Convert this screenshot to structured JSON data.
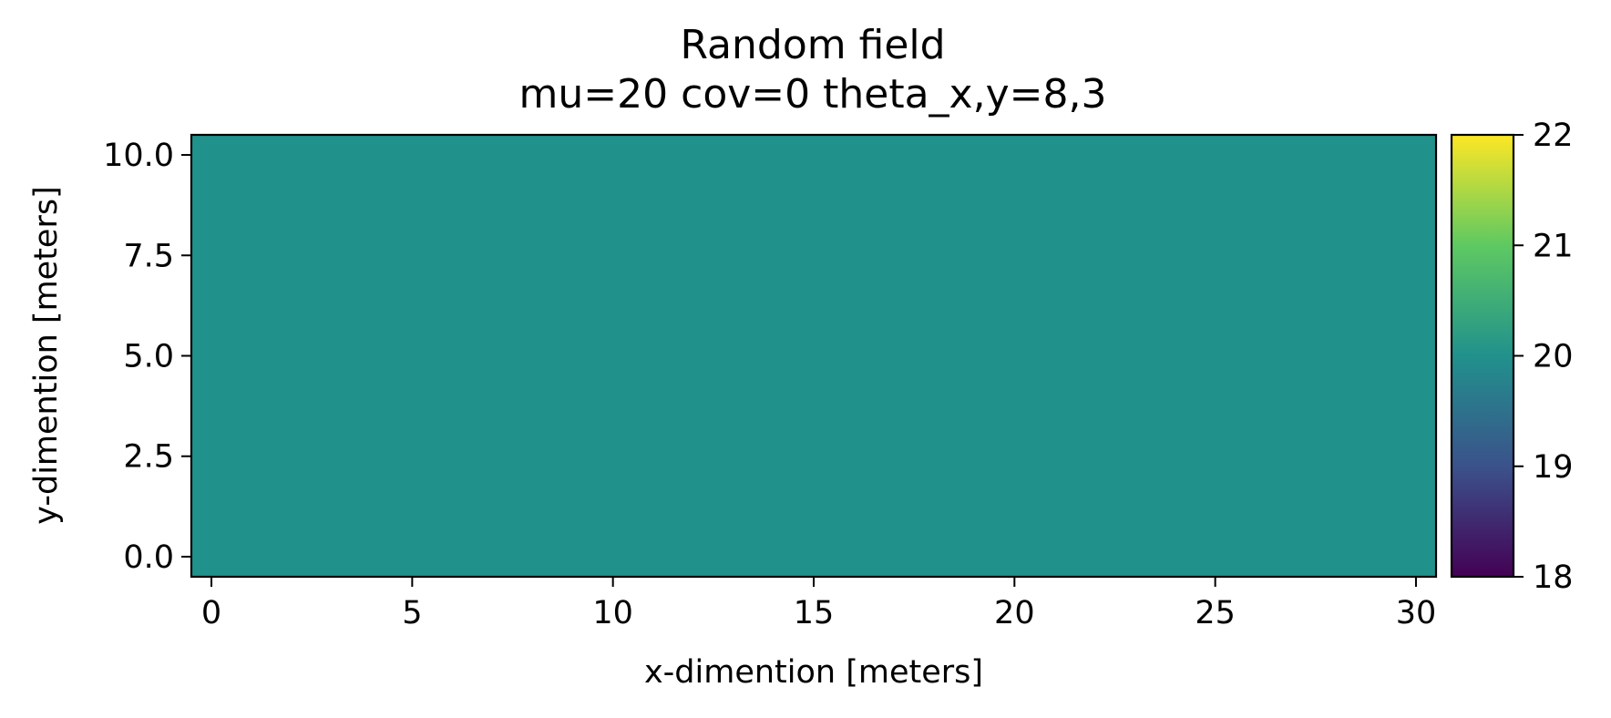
{
  "chart_data": {
    "type": "heatmap",
    "title": "Random field",
    "subtitle": "mu=20 cov=0 theta_x,y=8,3",
    "xlabel": "x-dimention [meters]",
    "ylabel": "y-dimention [meters]",
    "xlim": [
      -0.5,
      30.5
    ],
    "ylim": [
      -0.5,
      10.5
    ],
    "xticks": [
      0,
      5,
      10,
      15,
      20,
      25,
      30
    ],
    "xtick_labels": [
      "0",
      "5",
      "10",
      "15",
      "20",
      "25",
      "30"
    ],
    "yticks": [
      0,
      2.5,
      5,
      7.5,
      10
    ],
    "ytick_labels": [
      "0.0",
      "2.5",
      "5.0",
      "7.5",
      "10.0"
    ],
    "field_value": 20,
    "grid": false,
    "colorbar": {
      "colormap": "viridis",
      "range": [
        18,
        22
      ],
      "ticks": [
        18,
        19,
        20,
        21,
        22
      ],
      "tick_labels": [
        "18",
        "19",
        "20",
        "21",
        "22"
      ]
    },
    "colors": {
      "field": "#21918c",
      "viridis_stops": [
        "#440154",
        "#3b528b",
        "#21918c",
        "#5ec962",
        "#fde725"
      ]
    }
  }
}
